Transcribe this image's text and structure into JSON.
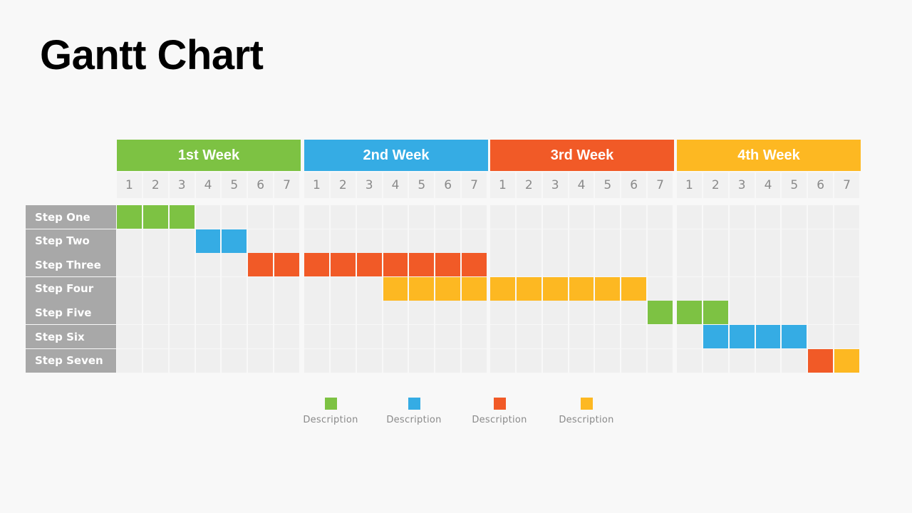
{
  "title": "Gantt Chart",
  "chart_data": {
    "type": "gantt",
    "weeks": [
      {
        "label": "1st Week",
        "color": "#7dc243"
      },
      {
        "label": "2nd Week",
        "color": "#35ace4"
      },
      {
        "label": "3rd Week",
        "color": "#f15a27"
      },
      {
        "label": "4th Week",
        "color": "#fdb822"
      }
    ],
    "days": [
      "1",
      "2",
      "3",
      "4",
      "5",
      "6",
      "7"
    ],
    "tasks": [
      {
        "name": "Step One",
        "start_day": 1,
        "end_day": 3,
        "color": "#7dc243"
      },
      {
        "name": "Step Two",
        "start_day": 4,
        "end_day": 5,
        "color": "#35ace4"
      },
      {
        "name": "Step Three",
        "start_day": 6,
        "end_day": 14,
        "color": "#f15a27"
      },
      {
        "name": "Step Four",
        "start_day": 11,
        "end_day": 20,
        "color": "#fdb822"
      },
      {
        "name": "Step Five",
        "start_day": 21,
        "end_day": 23,
        "color": "#7dc243"
      },
      {
        "name": "Step Six",
        "start_day": 23,
        "end_day": 26,
        "color": "#35ace4"
      },
      {
        "name": "Step Seven",
        "start_day": 27,
        "end_day": 28,
        "color": [
          "#f15a27",
          "#fdb822"
        ]
      }
    ],
    "legend": [
      {
        "label": "Description",
        "color": "#7dc243"
      },
      {
        "label": "Description",
        "color": "#35ace4"
      },
      {
        "label": "Description",
        "color": "#f15a27"
      },
      {
        "label": "Description",
        "color": "#fdb822"
      }
    ]
  }
}
